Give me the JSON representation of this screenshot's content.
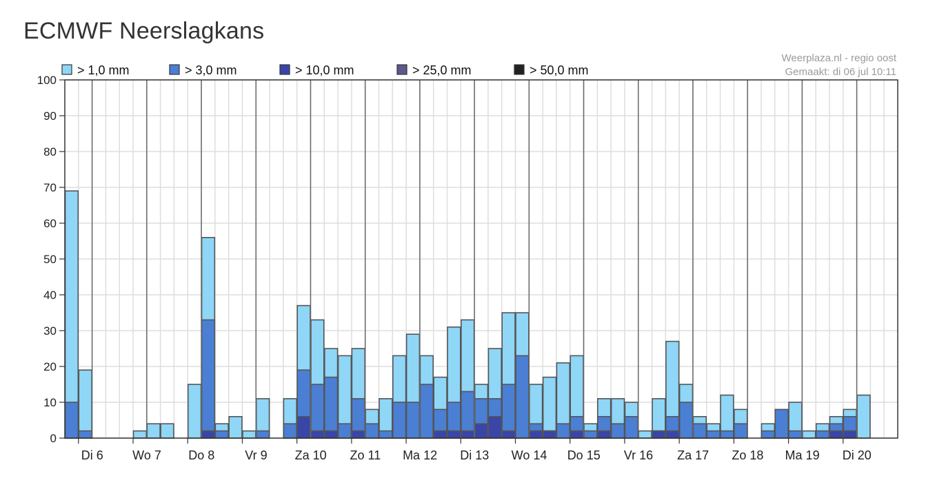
{
  "page": {
    "title": "ECMWF Neerslagkans"
  },
  "credit": {
    "line1": "Weerplaza.nl - regio oost",
    "line2": "Gemaakt: di 06 jul 10:11"
  },
  "colors": {
    "grid": "#dddddd",
    "daySep": "#666666",
    "barStroke": "#555555"
  },
  "chart_data": {
    "type": "bar",
    "stacked": "overlapping",
    "ylim": [
      0,
      100
    ],
    "yticks": [
      0,
      10,
      20,
      30,
      40,
      50,
      60,
      70,
      80,
      90,
      100
    ],
    "grid": true,
    "legend_position": "top",
    "bars_per_day": 4,
    "days": [
      "Di 6",
      "Wo 7",
      "Do 8",
      "Vr 9",
      "Za 10",
      "Zo 11",
      "Ma 12",
      "Di 13",
      "Wo 14",
      "Do 15",
      "Vr 16",
      "Za 17",
      "Zo 18",
      "Ma 19",
      "Di 20"
    ],
    "series": [
      {
        "name": "> 1,0 mm",
        "color": "#8fd6f7",
        "values": [
          69,
          19,
          0,
          0,
          0,
          2,
          4,
          4,
          0,
          15,
          56,
          4,
          6,
          2,
          11,
          0,
          11,
          37,
          33,
          25,
          23,
          25,
          8,
          11,
          23,
          29,
          23,
          17,
          31,
          33,
          15,
          25,
          35,
          35,
          15,
          17,
          21,
          23,
          4,
          11,
          11,
          10,
          2,
          11,
          27,
          15,
          6,
          4,
          12,
          8,
          0,
          4,
          4,
          10,
          2,
          4,
          6,
          8,
          12,
          0
        ]
      },
      {
        "name": "> 3,0 mm",
        "color": "#4a7fd4",
        "values": [
          10,
          2,
          0,
          0,
          0,
          0,
          0,
          0,
          0,
          0,
          33,
          2,
          0,
          0,
          2,
          0,
          4,
          19,
          15,
          17,
          4,
          11,
          4,
          2,
          10,
          10,
          15,
          8,
          10,
          13,
          11,
          11,
          15,
          23,
          4,
          2,
          4,
          6,
          2,
          6,
          4,
          6,
          0,
          2,
          6,
          10,
          4,
          2,
          2,
          4,
          0,
          2,
          8,
          2,
          0,
          2,
          4,
          6,
          0,
          0
        ]
      },
      {
        "name": "> 10,0 mm",
        "color": "#3a45a8",
        "values": [
          0,
          0,
          0,
          0,
          0,
          0,
          0,
          0,
          0,
          0,
          2,
          0,
          0,
          0,
          0,
          0,
          0,
          6,
          2,
          2,
          0,
          2,
          0,
          0,
          0,
          0,
          0,
          2,
          2,
          2,
          4,
          6,
          2,
          0,
          2,
          2,
          0,
          2,
          0,
          2,
          0,
          0,
          0,
          2,
          2,
          0,
          0,
          0,
          0,
          0,
          0,
          0,
          0,
          0,
          0,
          0,
          2,
          2,
          0,
          0
        ]
      },
      {
        "name": "> 25,0 mm",
        "color": "#5a5a8c",
        "values": []
      },
      {
        "name": "> 50,0 mm",
        "color": "#222222",
        "values": []
      }
    ]
  }
}
